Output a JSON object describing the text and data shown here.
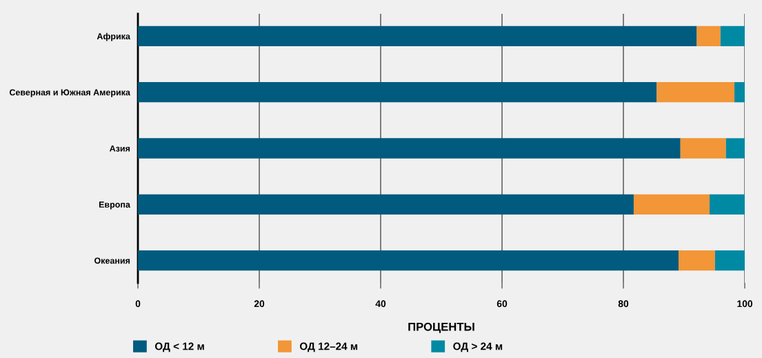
{
  "chart_data": {
    "type": "bar",
    "orientation": "horizontal",
    "stacked": true,
    "xlabel": "ПРОЦЕНТЫ",
    "categories": [
      "Африка",
      "Северная и Южная Америка",
      "Азия",
      "Европа",
      "Океания"
    ],
    "series": [
      {
        "name": "ОД < 12 м",
        "color": "#005b7f",
        "values": [
          92.1,
          85.5,
          89.4,
          81.7,
          89.1
        ]
      },
      {
        "name": "ОД 12–24 м",
        "color": "#f29637",
        "values": [
          3.9,
          12.8,
          7.5,
          12.5,
          6.0
        ]
      },
      {
        "name": "ОД > 24 м",
        "color": "#0089a3",
        "values": [
          4.0,
          1.7,
          3.1,
          5.8,
          4.9
        ]
      }
    ],
    "xlim": [
      0,
      100
    ],
    "xticks": [
      0,
      20,
      40,
      60,
      80,
      100
    ],
    "grid": "x",
    "legend": "bottom left"
  }
}
